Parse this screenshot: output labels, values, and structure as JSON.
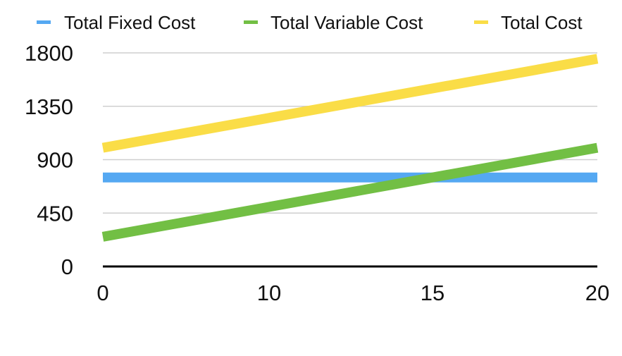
{
  "chart_data": {
    "type": "line",
    "categories": [
      "0",
      "10",
      "15",
      "20"
    ],
    "x": [
      0,
      10,
      15,
      20
    ],
    "xlim": [
      0,
      20
    ],
    "ylim": [
      0,
      1800
    ],
    "yticks": [
      0,
      450,
      900,
      1350,
      1800
    ],
    "xticks": [
      0,
      10,
      15,
      20
    ],
    "grid": true,
    "legend_position": "top",
    "series": [
      {
        "name": "Total Fixed Cost",
        "color": "#55a8f2",
        "x": [
          0,
          20
        ],
        "values": [
          750,
          750
        ]
      },
      {
        "name": "Total Variable Cost",
        "color": "#72bf44",
        "x": [
          0,
          20
        ],
        "values": [
          250,
          1000
        ]
      },
      {
        "name": "Total Cost",
        "color": "#fadd47",
        "x": [
          0,
          20
        ],
        "values": [
          1000,
          1750
        ]
      }
    ]
  }
}
